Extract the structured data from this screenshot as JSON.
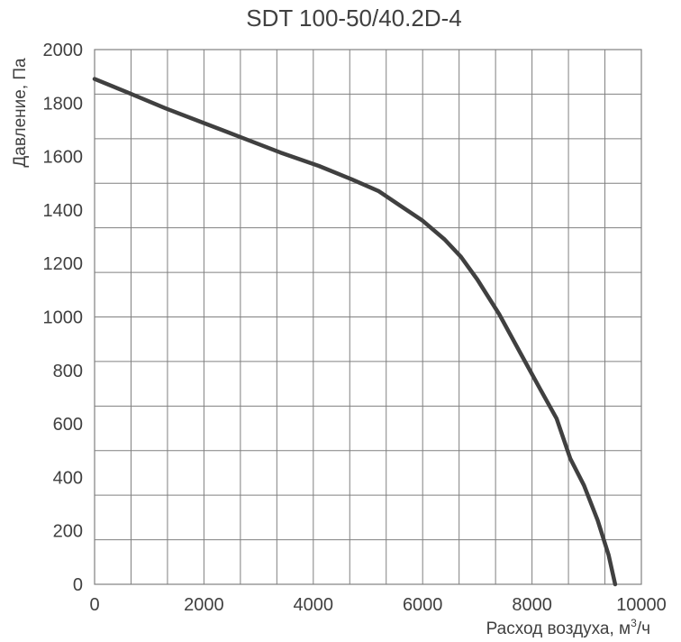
{
  "chart_data": {
    "type": "line",
    "title": "SDT 100-50/40.2D-4",
    "xlabel_text": "Расход воздуха, м",
    "xlabel_sup": "3",
    "xlabel_tail": "/ч",
    "ylabel": "Давление, Па",
    "xlim": [
      0,
      10000
    ],
    "ylim": [
      0,
      2000
    ],
    "x_ticks": [
      "0",
      "2000",
      "4000",
      "6000",
      "8000",
      "10000"
    ],
    "y_ticks": [
      "0",
      "200",
      "400",
      "600",
      "800",
      "1000",
      "1200",
      "1400",
      "1600",
      "1800",
      "2000"
    ],
    "grid": true,
    "line_color": "#404040",
    "series": [
      {
        "x": [
          0,
          600,
          1300,
          2000,
          2700,
          3400,
          4100,
          4700,
          5200,
          5600,
          6000,
          6400,
          6700,
          7000,
          7400,
          7800,
          8150,
          8450,
          8700,
          8950,
          9200,
          9400,
          9520
        ],
        "y": [
          1890,
          1840,
          1780,
          1725,
          1670,
          1615,
          1565,
          1515,
          1470,
          1415,
          1360,
          1290,
          1225,
          1140,
          1010,
          860,
          730,
          620,
          470,
          370,
          240,
          110,
          0
        ]
      }
    ]
  }
}
